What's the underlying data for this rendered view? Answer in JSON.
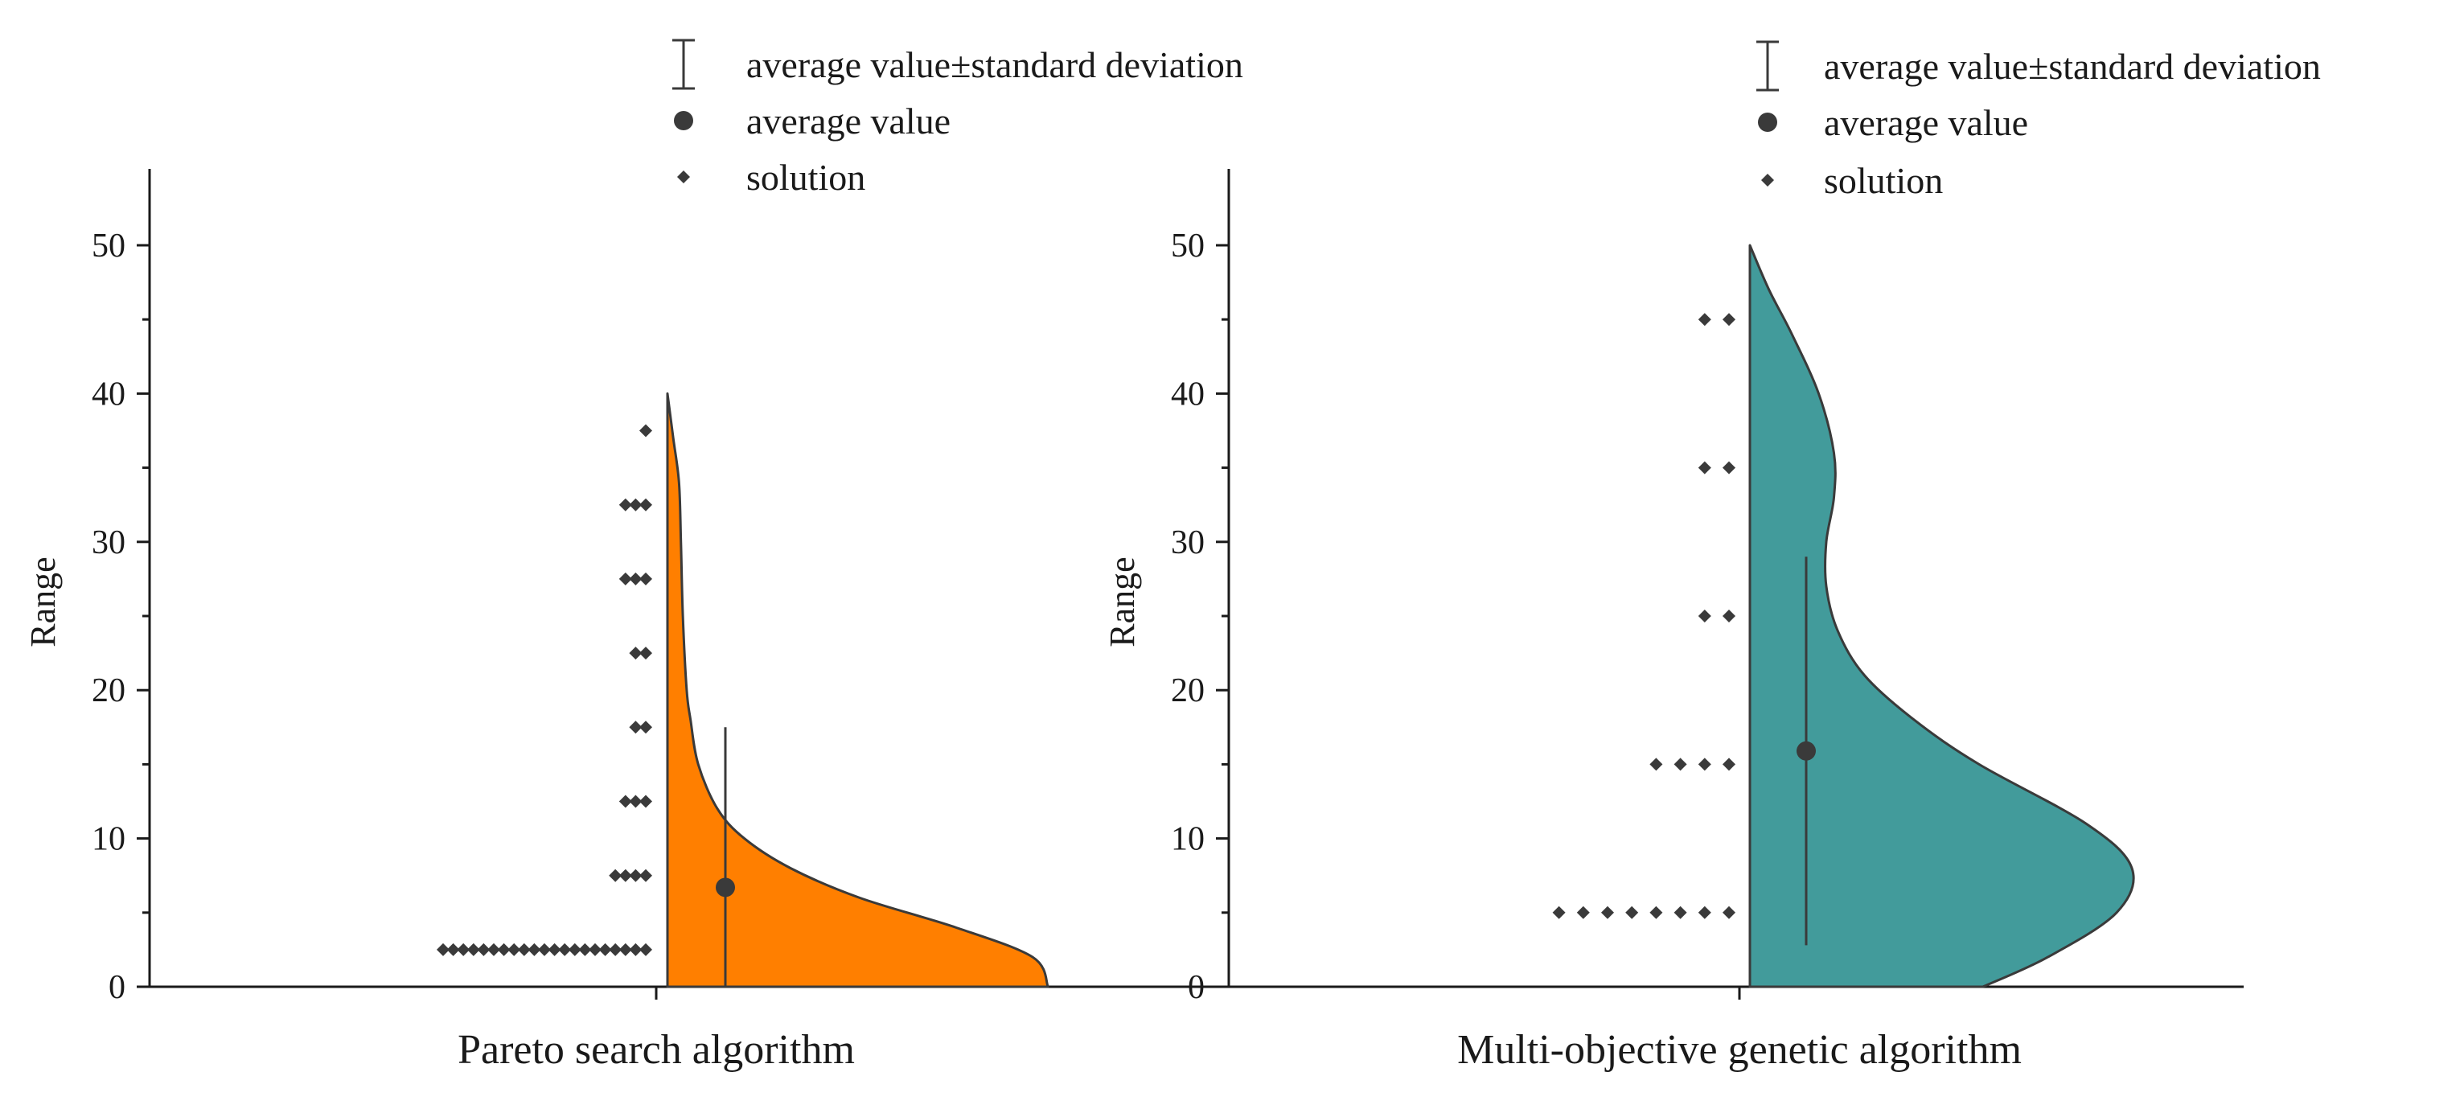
{
  "chart_data": [
    {
      "type": "half-violin",
      "category": "Pareto search algorithm",
      "xlabel": "Pareto search algorithm",
      "ylabel": "Range",
      "ylim": [
        0,
        55
      ],
      "yticks": [
        0,
        10,
        20,
        30,
        40,
        50
      ],
      "fill_color": "#ff7f00",
      "mean": 6.7,
      "std_range": [
        0,
        17.5
      ],
      "violin_extent": [
        0,
        40
      ],
      "density": [
        {
          "y": 0,
          "w": 0.99
        },
        {
          "y": 2,
          "w": 0.95
        },
        {
          "y": 4,
          "w": 0.75
        },
        {
          "y": 6,
          "w": 0.5
        },
        {
          "y": 8,
          "w": 0.32
        },
        {
          "y": 10,
          "w": 0.2
        },
        {
          "y": 12,
          "w": 0.13
        },
        {
          "y": 15,
          "w": 0.08
        },
        {
          "y": 18,
          "w": 0.06
        },
        {
          "y": 20,
          "w": 0.05
        },
        {
          "y": 25,
          "w": 0.04
        },
        {
          "y": 30,
          "w": 0.035
        },
        {
          "y": 34,
          "w": 0.03
        },
        {
          "y": 37,
          "w": 0.015
        },
        {
          "y": 40,
          "w": 0.0
        }
      ],
      "solutions": [
        {
          "value": 2.5,
          "count": 21
        },
        {
          "value": 7.5,
          "count": 4
        },
        {
          "value": 12.5,
          "count": 3
        },
        {
          "value": 17.5,
          "count": 2
        },
        {
          "value": 22.5,
          "count": 2
        },
        {
          "value": 27.5,
          "count": 3
        },
        {
          "value": 32.5,
          "count": 3
        },
        {
          "value": 37.5,
          "count": 1
        }
      ],
      "legend": {
        "items": [
          {
            "symbol": "errorbar",
            "label": "average value±standard deviation"
          },
          {
            "symbol": "circle",
            "label": "average value"
          },
          {
            "symbol": "diamond",
            "label": "solution"
          }
        ]
      }
    },
    {
      "type": "half-violin",
      "category": "Multi-objective genetic algorithm",
      "xlabel": "Multi-objective genetic algorithm",
      "ylabel": "Range",
      "ylim": [
        0,
        55
      ],
      "yticks": [
        0,
        10,
        20,
        30,
        40,
        50
      ],
      "fill_color": "#429b9b",
      "mean": 15.9,
      "std_range": [
        2.8,
        29
      ],
      "violin_extent": [
        0,
        50
      ],
      "density": [
        {
          "y": 0,
          "w": 0.61
        },
        {
          "y": 2,
          "w": 0.78
        },
        {
          "y": 5,
          "w": 0.96
        },
        {
          "y": 8,
          "w": 1.0
        },
        {
          "y": 11,
          "w": 0.88
        },
        {
          "y": 15,
          "w": 0.6
        },
        {
          "y": 18,
          "w": 0.43
        },
        {
          "y": 21,
          "w": 0.3
        },
        {
          "y": 24,
          "w": 0.23
        },
        {
          "y": 27,
          "w": 0.2
        },
        {
          "y": 30,
          "w": 0.2
        },
        {
          "y": 33,
          "w": 0.22
        },
        {
          "y": 36,
          "w": 0.22
        },
        {
          "y": 40,
          "w": 0.18
        },
        {
          "y": 44,
          "w": 0.11
        },
        {
          "y": 47,
          "w": 0.05
        },
        {
          "y": 50,
          "w": 0.0
        }
      ],
      "solutions": [
        {
          "value": 5,
          "count": 8
        },
        {
          "value": 15,
          "count": 4
        },
        {
          "value": 25,
          "count": 2
        },
        {
          "value": 35,
          "count": 2
        },
        {
          "value": 45,
          "count": 2
        }
      ],
      "legend": {
        "items": [
          {
            "symbol": "errorbar",
            "label": "average value±standard deviation"
          },
          {
            "symbol": "circle",
            "label": "average value"
          },
          {
            "symbol": "diamond",
            "label": "solution"
          }
        ]
      }
    }
  ],
  "colors": {
    "axis": "#1a1a1a",
    "marker": "#3a3a3a",
    "outline": "#3a3a3a"
  }
}
